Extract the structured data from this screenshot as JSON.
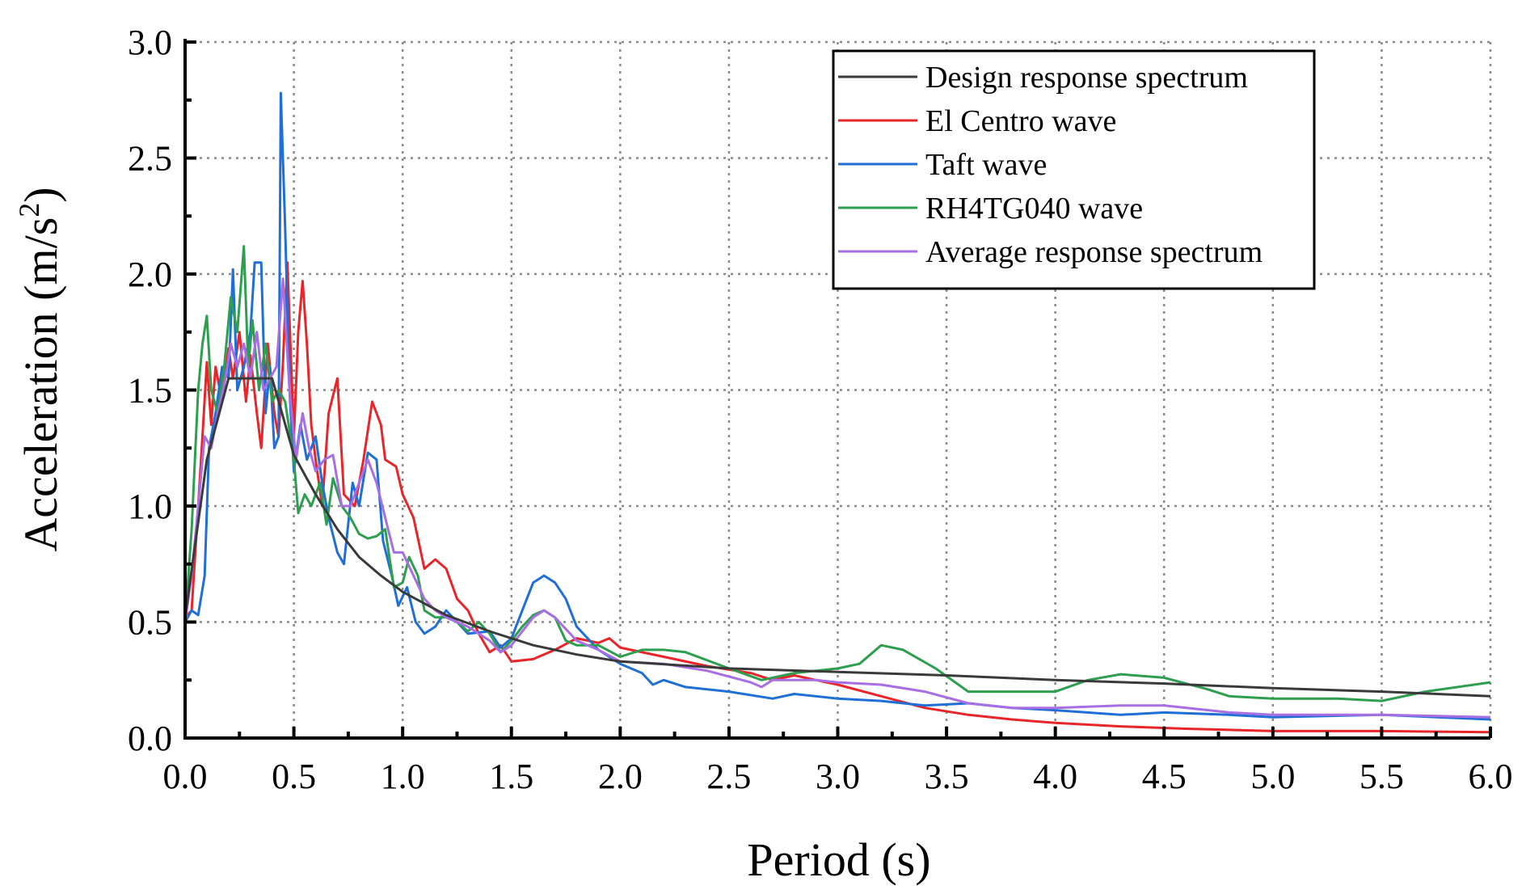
{
  "chart_data": {
    "type": "line",
    "title": "",
    "xlabel": "Period (s)",
    "ylabel_main": "Acceleration (m/s",
    "ylabel_sup": "2",
    "ylabel_tail": ")",
    "xlim": [
      0,
      6
    ],
    "ylim": [
      0,
      3
    ],
    "xticks": [
      "0.0",
      "0.5",
      "1.0",
      "1.5",
      "2.0",
      "2.5",
      "3.0",
      "3.5",
      "4.0",
      "4.5",
      "5.0",
      "5.5",
      "6.0"
    ],
    "yticks": [
      "0.0",
      "0.5",
      "1.0",
      "1.5",
      "2.0",
      "2.5",
      "3.0"
    ],
    "grid": true,
    "legend_position": "top-right",
    "series": [
      {
        "name": "Design response spectrum",
        "color": "#3a3a3a",
        "points": [
          [
            0,
            0.52
          ],
          [
            0.1,
            1.2
          ],
          [
            0.2,
            1.55
          ],
          [
            0.4,
            1.55
          ],
          [
            0.5,
            1.22
          ],
          [
            0.6,
            1.05
          ],
          [
            0.7,
            0.9
          ],
          [
            0.8,
            0.78
          ],
          [
            0.9,
            0.7
          ],
          [
            1.0,
            0.63
          ],
          [
            1.2,
            0.53
          ],
          [
            1.4,
            0.46
          ],
          [
            1.6,
            0.4
          ],
          [
            1.8,
            0.36
          ],
          [
            2.0,
            0.33
          ],
          [
            2.5,
            0.3
          ],
          [
            3.0,
            0.285
          ],
          [
            3.5,
            0.27
          ],
          [
            4.0,
            0.25
          ],
          [
            4.5,
            0.235
          ],
          [
            5.0,
            0.215
          ],
          [
            5.5,
            0.2
          ],
          [
            6.0,
            0.18
          ]
        ]
      },
      {
        "name": "El Centro wave",
        "color": "#e8262a",
        "points": [
          [
            0,
            0.52
          ],
          [
            0.03,
            0.55
          ],
          [
            0.06,
            1.0
          ],
          [
            0.08,
            1.3
          ],
          [
            0.1,
            1.62
          ],
          [
            0.12,
            1.35
          ],
          [
            0.14,
            1.6
          ],
          [
            0.17,
            1.45
          ],
          [
            0.2,
            1.68
          ],
          [
            0.22,
            1.55
          ],
          [
            0.25,
            1.75
          ],
          [
            0.28,
            1.45
          ],
          [
            0.3,
            1.65
          ],
          [
            0.33,
            1.4
          ],
          [
            0.35,
            1.25
          ],
          [
            0.38,
            1.7
          ],
          [
            0.41,
            1.4
          ],
          [
            0.43,
            1.3
          ],
          [
            0.45,
            1.62
          ],
          [
            0.47,
            2.05
          ],
          [
            0.5,
            1.3
          ],
          [
            0.52,
            1.75
          ],
          [
            0.54,
            1.97
          ],
          [
            0.56,
            1.7
          ],
          [
            0.58,
            1.35
          ],
          [
            0.6,
            1.2
          ],
          [
            0.63,
            1.0
          ],
          [
            0.66,
            1.4
          ],
          [
            0.7,
            1.55
          ],
          [
            0.73,
            1.05
          ],
          [
            0.78,
            1.0
          ],
          [
            0.82,
            1.2
          ],
          [
            0.86,
            1.45
          ],
          [
            0.9,
            1.35
          ],
          [
            0.92,
            1.2
          ],
          [
            0.97,
            1.17
          ],
          [
            1.0,
            1.05
          ],
          [
            1.05,
            0.95
          ],
          [
            1.1,
            0.73
          ],
          [
            1.15,
            0.77
          ],
          [
            1.2,
            0.73
          ],
          [
            1.25,
            0.6
          ],
          [
            1.3,
            0.55
          ],
          [
            1.35,
            0.45
          ],
          [
            1.4,
            0.37
          ],
          [
            1.45,
            0.4
          ],
          [
            1.5,
            0.33
          ],
          [
            1.6,
            0.34
          ],
          [
            1.7,
            0.38
          ],
          [
            1.8,
            0.43
          ],
          [
            1.9,
            0.41
          ],
          [
            1.95,
            0.43
          ],
          [
            2.0,
            0.39
          ],
          [
            2.2,
            0.35
          ],
          [
            2.4,
            0.31
          ],
          [
            2.6,
            0.28
          ],
          [
            2.7,
            0.25
          ],
          [
            2.8,
            0.27
          ],
          [
            2.9,
            0.25
          ],
          [
            3.0,
            0.23
          ],
          [
            3.2,
            0.18
          ],
          [
            3.4,
            0.13
          ],
          [
            3.6,
            0.1
          ],
          [
            3.8,
            0.08
          ],
          [
            4.0,
            0.065
          ],
          [
            4.3,
            0.05
          ],
          [
            4.6,
            0.04
          ],
          [
            5.0,
            0.03
          ],
          [
            5.5,
            0.03
          ],
          [
            6.0,
            0.025
          ]
        ]
      },
      {
        "name": "Taft wave",
        "color": "#1f6fd6",
        "points": [
          [
            0,
            0.5
          ],
          [
            0.03,
            0.55
          ],
          [
            0.06,
            0.53
          ],
          [
            0.09,
            0.7
          ],
          [
            0.11,
            1.25
          ],
          [
            0.14,
            1.4
          ],
          [
            0.17,
            1.6
          ],
          [
            0.2,
            1.55
          ],
          [
            0.22,
            2.02
          ],
          [
            0.24,
            1.5
          ],
          [
            0.27,
            1.6
          ],
          [
            0.3,
            1.75
          ],
          [
            0.32,
            2.05
          ],
          [
            0.35,
            2.05
          ],
          [
            0.37,
            1.4
          ],
          [
            0.39,
            1.6
          ],
          [
            0.41,
            1.25
          ],
          [
            0.43,
            1.3
          ],
          [
            0.44,
            2.78
          ],
          [
            0.46,
            2.2
          ],
          [
            0.48,
            1.5
          ],
          [
            0.5,
            1.15
          ],
          [
            0.53,
            1.35
          ],
          [
            0.56,
            1.2
          ],
          [
            0.6,
            1.3
          ],
          [
            0.63,
            1.1
          ],
          [
            0.66,
            0.95
          ],
          [
            0.7,
            0.8
          ],
          [
            0.73,
            0.75
          ],
          [
            0.77,
            1.1
          ],
          [
            0.8,
            1.0
          ],
          [
            0.84,
            1.23
          ],
          [
            0.88,
            1.2
          ],
          [
            0.91,
            0.85
          ],
          [
            0.95,
            0.7
          ],
          [
            0.98,
            0.57
          ],
          [
            1.02,
            0.65
          ],
          [
            1.06,
            0.5
          ],
          [
            1.1,
            0.45
          ],
          [
            1.15,
            0.48
          ],
          [
            1.2,
            0.55
          ],
          [
            1.3,
            0.45
          ],
          [
            1.4,
            0.46
          ],
          [
            1.45,
            0.39
          ],
          [
            1.5,
            0.43
          ],
          [
            1.55,
            0.55
          ],
          [
            1.6,
            0.67
          ],
          [
            1.65,
            0.7
          ],
          [
            1.7,
            0.67
          ],
          [
            1.75,
            0.6
          ],
          [
            1.8,
            0.48
          ],
          [
            1.9,
            0.38
          ],
          [
            2.0,
            0.32
          ],
          [
            2.1,
            0.28
          ],
          [
            2.15,
            0.23
          ],
          [
            2.2,
            0.25
          ],
          [
            2.3,
            0.22
          ],
          [
            2.5,
            0.2
          ],
          [
            2.7,
            0.17
          ],
          [
            2.8,
            0.19
          ],
          [
            3.0,
            0.17
          ],
          [
            3.2,
            0.16
          ],
          [
            3.4,
            0.14
          ],
          [
            3.6,
            0.15
          ],
          [
            3.8,
            0.13
          ],
          [
            4.0,
            0.12
          ],
          [
            4.3,
            0.1
          ],
          [
            4.5,
            0.11
          ],
          [
            4.8,
            0.1
          ],
          [
            5.0,
            0.09
          ],
          [
            5.5,
            0.1
          ],
          [
            6.0,
            0.08
          ]
        ]
      },
      {
        "name": "RH4TG040 wave",
        "color": "#2e9e4f",
        "points": [
          [
            0,
            0.5
          ],
          [
            0.03,
            0.9
          ],
          [
            0.06,
            1.5
          ],
          [
            0.08,
            1.7
          ],
          [
            0.1,
            1.82
          ],
          [
            0.12,
            1.5
          ],
          [
            0.15,
            1.4
          ],
          [
            0.18,
            1.6
          ],
          [
            0.21,
            1.9
          ],
          [
            0.24,
            1.75
          ],
          [
            0.27,
            2.12
          ],
          [
            0.29,
            1.6
          ],
          [
            0.31,
            1.8
          ],
          [
            0.34,
            1.5
          ],
          [
            0.37,
            1.7
          ],
          [
            0.4,
            1.45
          ],
          [
            0.43,
            1.5
          ],
          [
            0.46,
            1.45
          ],
          [
            0.5,
            1.2
          ],
          [
            0.52,
            0.97
          ],
          [
            0.55,
            1.05
          ],
          [
            0.58,
            1.0
          ],
          [
            0.62,
            1.1
          ],
          [
            0.65,
            0.92
          ],
          [
            0.68,
            1.12
          ],
          [
            0.72,
            1.0
          ],
          [
            0.76,
            0.95
          ],
          [
            0.8,
            0.88
          ],
          [
            0.84,
            0.86
          ],
          [
            0.88,
            0.87
          ],
          [
            0.92,
            0.9
          ],
          [
            0.96,
            0.65
          ],
          [
            1.0,
            0.67
          ],
          [
            1.03,
            0.78
          ],
          [
            1.07,
            0.7
          ],
          [
            1.1,
            0.55
          ],
          [
            1.15,
            0.52
          ],
          [
            1.2,
            0.52
          ],
          [
            1.25,
            0.5
          ],
          [
            1.3,
            0.46
          ],
          [
            1.35,
            0.5
          ],
          [
            1.4,
            0.45
          ],
          [
            1.45,
            0.37
          ],
          [
            1.5,
            0.42
          ],
          [
            1.55,
            0.48
          ],
          [
            1.6,
            0.53
          ],
          [
            1.65,
            0.55
          ],
          [
            1.7,
            0.52
          ],
          [
            1.75,
            0.42
          ],
          [
            1.8,
            0.4
          ],
          [
            1.9,
            0.4
          ],
          [
            2.0,
            0.35
          ],
          [
            2.1,
            0.38
          ],
          [
            2.2,
            0.38
          ],
          [
            2.3,
            0.37
          ],
          [
            2.5,
            0.3
          ],
          [
            2.65,
            0.25
          ],
          [
            2.8,
            0.28
          ],
          [
            3.0,
            0.3
          ],
          [
            3.1,
            0.32
          ],
          [
            3.2,
            0.4
          ],
          [
            3.3,
            0.38
          ],
          [
            3.45,
            0.3
          ],
          [
            3.6,
            0.2
          ],
          [
            3.8,
            0.2
          ],
          [
            4.0,
            0.2
          ],
          [
            4.15,
            0.25
          ],
          [
            4.3,
            0.275
          ],
          [
            4.5,
            0.26
          ],
          [
            4.7,
            0.21
          ],
          [
            4.8,
            0.18
          ],
          [
            5.0,
            0.17
          ],
          [
            5.3,
            0.17
          ],
          [
            5.5,
            0.16
          ],
          [
            5.7,
            0.2
          ],
          [
            6.0,
            0.24
          ]
        ]
      },
      {
        "name": "Average response spectrum",
        "color": "#a86ee3",
        "points": [
          [
            0,
            0.5
          ],
          [
            0.03,
            0.7
          ],
          [
            0.06,
            1.0
          ],
          [
            0.09,
            1.3
          ],
          [
            0.12,
            1.25
          ],
          [
            0.15,
            1.4
          ],
          [
            0.18,
            1.52
          ],
          [
            0.21,
            1.7
          ],
          [
            0.24,
            1.6
          ],
          [
            0.27,
            1.7
          ],
          [
            0.3,
            1.55
          ],
          [
            0.33,
            1.75
          ],
          [
            0.36,
            1.5
          ],
          [
            0.39,
            1.55
          ],
          [
            0.42,
            1.6
          ],
          [
            0.45,
            1.98
          ],
          [
            0.48,
            1.5
          ],
          [
            0.51,
            1.2
          ],
          [
            0.54,
            1.4
          ],
          [
            0.57,
            1.25
          ],
          [
            0.6,
            1.15
          ],
          [
            0.64,
            1.2
          ],
          [
            0.68,
            1.22
          ],
          [
            0.72,
            1.0
          ],
          [
            0.76,
            1.0
          ],
          [
            0.8,
            1.1
          ],
          [
            0.84,
            1.2
          ],
          [
            0.88,
            1.1
          ],
          [
            0.92,
            0.95
          ],
          [
            0.96,
            0.8
          ],
          [
            1.0,
            0.8
          ],
          [
            1.05,
            0.7
          ],
          [
            1.1,
            0.6
          ],
          [
            1.15,
            0.55
          ],
          [
            1.2,
            0.52
          ],
          [
            1.3,
            0.48
          ],
          [
            1.4,
            0.42
          ],
          [
            1.45,
            0.37
          ],
          [
            1.5,
            0.4
          ],
          [
            1.6,
            0.52
          ],
          [
            1.65,
            0.55
          ],
          [
            1.7,
            0.52
          ],
          [
            1.8,
            0.42
          ],
          [
            1.9,
            0.38
          ],
          [
            2.0,
            0.33
          ],
          [
            2.2,
            0.32
          ],
          [
            2.4,
            0.29
          ],
          [
            2.6,
            0.24
          ],
          [
            2.65,
            0.22
          ],
          [
            2.7,
            0.25
          ],
          [
            2.9,
            0.25
          ],
          [
            3.0,
            0.24
          ],
          [
            3.2,
            0.23
          ],
          [
            3.4,
            0.2
          ],
          [
            3.6,
            0.15
          ],
          [
            3.8,
            0.13
          ],
          [
            4.0,
            0.13
          ],
          [
            4.3,
            0.14
          ],
          [
            4.5,
            0.14
          ],
          [
            4.8,
            0.11
          ],
          [
            5.0,
            0.1
          ],
          [
            5.5,
            0.1
          ],
          [
            6.0,
            0.09
          ]
        ]
      }
    ]
  }
}
